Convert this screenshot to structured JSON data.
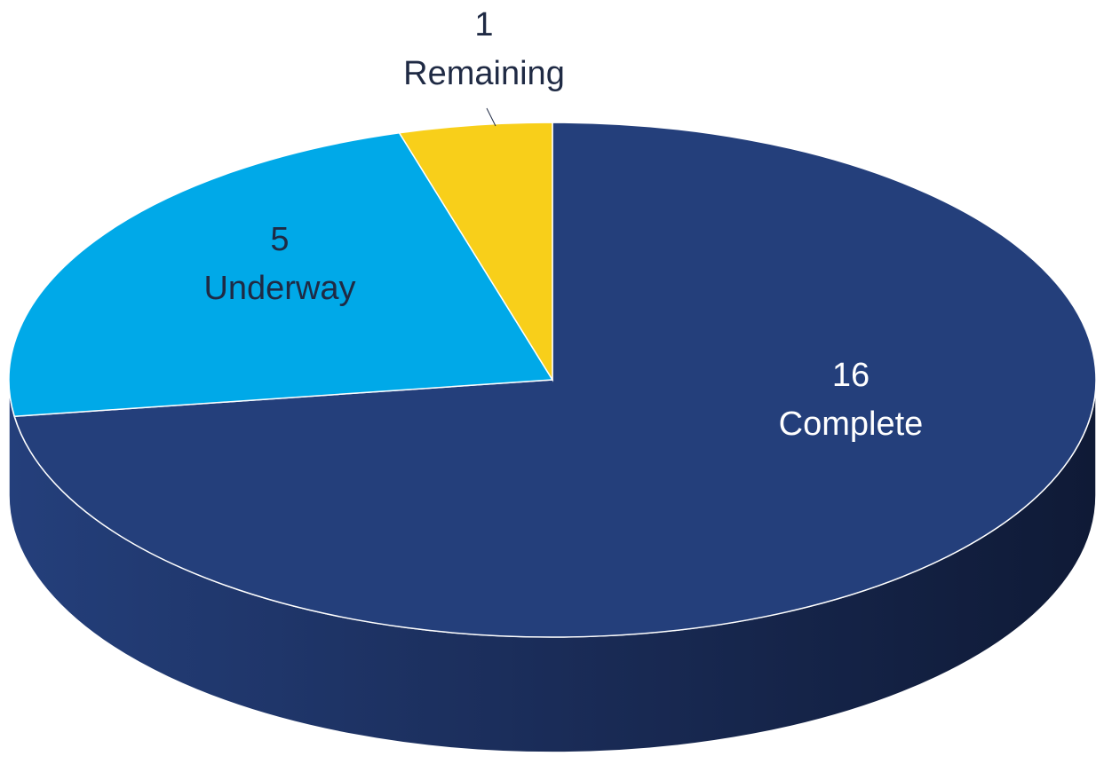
{
  "chart_data": {
    "type": "pie",
    "categories": [
      "Complete",
      "Underway",
      "Remaining"
    ],
    "values": [
      16,
      5,
      1
    ],
    "colors": [
      "#243f7b",
      "#00a9e8",
      "#f8cf1a"
    ]
  }
}
